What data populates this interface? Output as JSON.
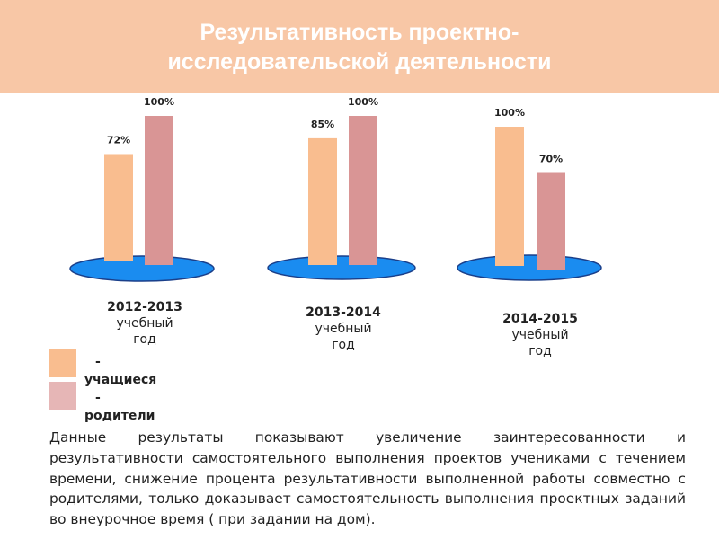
{
  "header": {
    "title_line1": "Результативность проектно-",
    "title_line2": "исследовательской деятельности"
  },
  "colors": {
    "banner": "#f8c7a6",
    "students": "#f9bd8f",
    "parents": "#d99595",
    "parents_legend": "#e6b6b6",
    "platform": "#1a8cf0",
    "platform_edge": "#1a3f8a"
  },
  "chart_data": {
    "type": "bar",
    "categories": [
      "2012-2013 учебный год",
      "2013-2014 учебный год",
      "2014-2015 учебный год"
    ],
    "category_lines": [
      [
        "2012-2013",
        "учебный",
        "год"
      ],
      [
        "2013-2014",
        "учебный",
        "год"
      ],
      [
        "2014-2015",
        "учебный",
        "год"
      ]
    ],
    "series": [
      {
        "name": "- учащиеся",
        "values": [
          72,
          85,
          100
        ],
        "labels": [
          "72%",
          "85%",
          "100%"
        ]
      },
      {
        "name": "- родители",
        "values": [
          100,
          100,
          70
        ],
        "labels": [
          "100%",
          "100%",
          "70%"
        ]
      }
    ],
    "ylim": [
      0,
      100
    ]
  },
  "legend": {
    "students_dash": "-",
    "students_label": "учащиеся",
    "parents_dash": "-",
    "parents_label": "родители"
  },
  "description": "Данные результаты показывают увеличение заинтересованности и результативности самостоятельного выполнения проектов учениками с течением времени, снижение процента результативности выполненной работы совместно с родителями, только доказывает самостоятельность выполнения проектных заданий во внеурочное время ( при задании на дом)."
}
